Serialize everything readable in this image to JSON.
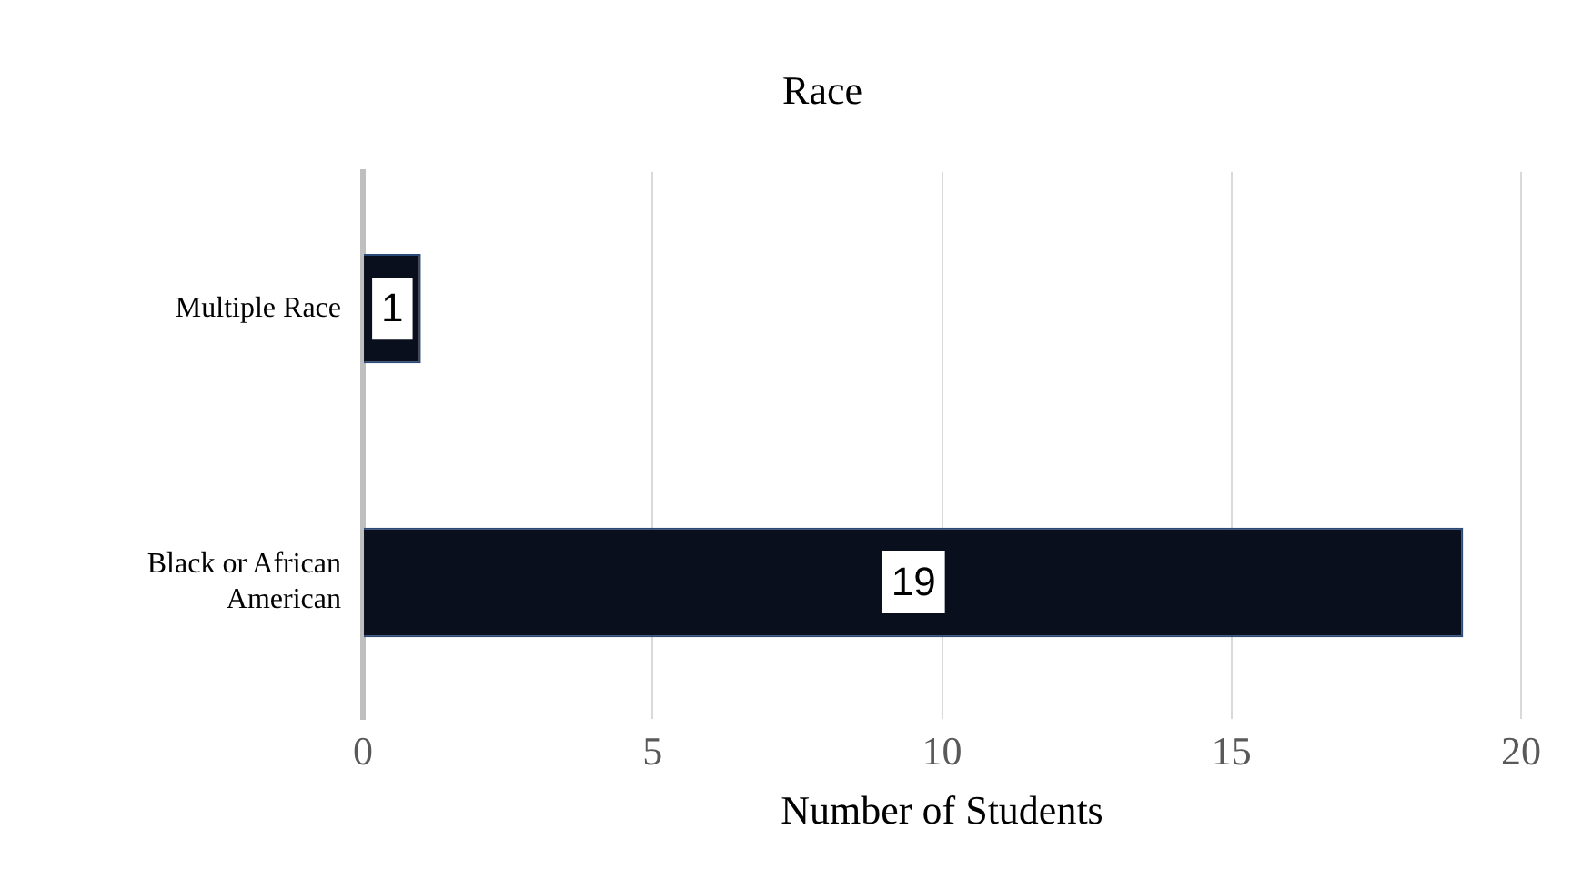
{
  "chart_data": {
    "type": "bar",
    "orientation": "horizontal",
    "title": "Race",
    "xlabel": "Number of Students",
    "categories": [
      "Multiple Race",
      "Black or African American"
    ],
    "values": [
      1,
      19
    ],
    "color": "#0a0f1e",
    "xlim": [
      0,
      20
    ],
    "xticks": [
      0,
      5,
      10,
      15,
      20
    ],
    "grid": "x",
    "data_labels": true,
    "legend": false
  }
}
